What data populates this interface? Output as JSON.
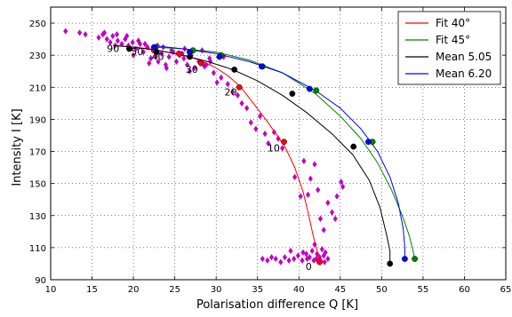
{
  "chart_data": {
    "type": "scatter",
    "xlabel": "Polarisation difference Q [K]",
    "ylabel": "Intensity I [K]",
    "xlim": [
      10,
      65
    ],
    "ylim": [
      90,
      260
    ],
    "xticks": [
      10,
      15,
      20,
      25,
      30,
      35,
      40,
      45,
      50,
      55,
      60,
      65
    ],
    "yticks": [
      90,
      110,
      130,
      150,
      170,
      190,
      210,
      230,
      250
    ],
    "grid": true,
    "legend_position": "top-right",
    "observations": {
      "color": "#c000c0",
      "marker": "diamond",
      "points": [
        [
          11.8,
          245
        ],
        [
          13.5,
          244
        ],
        [
          14.2,
          243
        ],
        [
          15.8,
          241
        ],
        [
          16.3,
          243
        ],
        [
          16.8,
          240
        ],
        [
          17.2,
          238
        ],
        [
          17.5,
          242
        ],
        [
          18.1,
          239
        ],
        [
          18.6,
          237
        ],
        [
          19.0,
          240
        ],
        [
          19.4,
          236
        ],
        [
          19.9,
          238
        ],
        [
          20.3,
          234
        ],
        [
          20.8,
          237
        ],
        [
          21.2,
          232
        ],
        [
          21.7,
          235
        ],
        [
          22.1,
          228
        ],
        [
          22.5,
          233
        ],
        [
          23.0,
          226
        ],
        [
          23.4,
          231
        ],
        [
          23.9,
          224
        ],
        [
          24.3,
          229
        ],
        [
          24.8,
          232
        ],
        [
          25.2,
          226
        ],
        [
          25.6,
          230
        ],
        [
          26.1,
          228
        ],
        [
          26.5,
          224
        ],
        [
          27.0,
          230
        ],
        [
          27.4,
          222
        ],
        [
          27.9,
          226
        ],
        [
          28.3,
          233
        ],
        [
          28.8,
          224
        ],
        [
          29.2,
          228
        ],
        [
          29.7,
          219
        ],
        [
          30.1,
          213
        ],
        [
          30.6,
          216
        ],
        [
          31.4,
          212
        ],
        [
          32.0,
          207
        ],
        [
          32.6,
          205
        ],
        [
          33.1,
          200
        ],
        [
          33.7,
          197
        ],
        [
          34.2,
          188
        ],
        [
          34.8,
          184
        ],
        [
          35.3,
          192
        ],
        [
          35.9,
          181
        ],
        [
          36.3,
          175
        ],
        [
          37.0,
          182
        ],
        [
          37.5,
          178
        ],
        [
          38.0,
          172
        ],
        [
          39.5,
          154
        ],
        [
          40.2,
          142
        ],
        [
          40.6,
          164
        ],
        [
          41.1,
          143
        ],
        [
          41.4,
          153
        ],
        [
          41.9,
          162
        ],
        [
          42.3,
          146
        ],
        [
          42.6,
          128
        ],
        [
          43.0,
          121
        ],
        [
          43.5,
          138
        ],
        [
          44.0,
          132
        ],
        [
          44.4,
          128
        ],
        [
          44.6,
          142
        ],
        [
          45.1,
          151
        ],
        [
          45.3,
          148
        ],
        [
          41.6,
          108
        ],
        [
          41.9,
          112
        ],
        [
          42.2,
          106
        ],
        [
          42.5,
          104
        ],
        [
          42.8,
          109
        ],
        [
          43.0,
          105
        ],
        [
          43.2,
          107
        ],
        [
          43.5,
          103
        ],
        [
          35.6,
          103
        ],
        [
          36.2,
          102
        ],
        [
          36.7,
          104
        ],
        [
          37.2,
          103
        ],
        [
          37.8,
          101
        ],
        [
          38.3,
          104
        ],
        [
          38.8,
          102
        ],
        [
          39.4,
          103
        ],
        [
          39.9,
          105
        ],
        [
          40.4,
          102
        ],
        [
          40.9,
          106
        ],
        [
          41.3,
          104
        ],
        [
          41.8,
          102
        ],
        [
          42.1,
          103
        ],
        [
          42.6,
          102
        ],
        [
          43.1,
          101
        ],
        [
          39.0,
          108
        ],
        [
          40.5,
          107
        ],
        [
          41.0,
          103
        ],
        [
          16.5,
          244
        ],
        [
          18.0,
          243
        ],
        [
          17.8,
          236
        ],
        [
          19.2,
          242
        ],
        [
          20.6,
          239
        ],
        [
          21.4,
          237
        ],
        [
          22.9,
          236
        ],
        [
          23.6,
          235
        ],
        [
          24.6,
          233
        ],
        [
          25.9,
          231
        ],
        [
          21.9,
          225
        ],
        [
          24.0,
          222
        ],
        [
          26.8,
          220
        ],
        [
          28.6,
          223
        ],
        [
          29.3,
          226
        ],
        [
          30.9,
          229
        ],
        [
          20.0,
          230
        ],
        [
          22.7,
          229
        ],
        [
          26.2,
          234
        ]
      ]
    },
    "series": [
      {
        "name": "Fit 40°",
        "color": "#ff0000",
        "line": [
          [
            17.9,
            236
          ],
          [
            20,
            235
          ],
          [
            22,
            234
          ],
          [
            24,
            232
          ],
          [
            26,
            230
          ],
          [
            28,
            227
          ],
          [
            30,
            222
          ],
          [
            31.5,
            217
          ],
          [
            33,
            210
          ],
          [
            34.5,
            200
          ],
          [
            36,
            190
          ],
          [
            37.5,
            179
          ],
          [
            38.4,
            172
          ],
          [
            39.5,
            160
          ],
          [
            40.5,
            145
          ],
          [
            41.2,
            130
          ],
          [
            41.7,
            118
          ],
          [
            42.1,
            110
          ],
          [
            42.4,
            104
          ],
          [
            42.5,
            101
          ]
        ],
        "markers": [
          [
            22.5,
            233
          ],
          [
            25.5,
            231
          ],
          [
            28.2,
            225
          ],
          [
            32.8,
            210
          ],
          [
            38.2,
            176
          ],
          [
            42.5,
            101
          ]
        ]
      },
      {
        "name": "Fit 45°",
        "color": "#008000",
        "line": [
          [
            22.5,
            235
          ],
          [
            26,
            234
          ],
          [
            30,
            232
          ],
          [
            34,
            227
          ],
          [
            38,
            219
          ],
          [
            42,
            206
          ],
          [
            45,
            192
          ],
          [
            47.5,
            178
          ],
          [
            49.5,
            163
          ],
          [
            51.2,
            146
          ],
          [
            52.5,
            130
          ],
          [
            53.3,
            118
          ],
          [
            53.8,
            108
          ],
          [
            54,
            103
          ]
        ],
        "markers": [
          [
            22.7,
            235
          ],
          [
            27.2,
            233
          ],
          [
            30.6,
            230
          ],
          [
            35.6,
            223
          ],
          [
            42.1,
            208
          ],
          [
            48.9,
            176
          ],
          [
            54,
            103
          ]
        ]
      },
      {
        "name": "Mean 5.05",
        "color": "#000000",
        "line": [
          [
            17.6,
            236
          ],
          [
            20,
            235
          ],
          [
            23,
            233
          ],
          [
            26,
            230
          ],
          [
            29,
            226
          ],
          [
            32,
            221
          ],
          [
            35,
            214
          ],
          [
            38,
            205
          ],
          [
            41,
            194
          ],
          [
            44,
            181
          ],
          [
            46.5,
            168
          ],
          [
            48.5,
            152
          ],
          [
            49.8,
            135
          ],
          [
            50.6,
            118
          ],
          [
            51,
            108
          ],
          [
            51,
            100
          ]
        ],
        "markers": [
          [
            19.5,
            234
          ],
          [
            22.8,
            232
          ],
          [
            26.8,
            229
          ],
          [
            32.2,
            221
          ],
          [
            39.2,
            206
          ],
          [
            46.6,
            173
          ],
          [
            51,
            100
          ]
        ]
      },
      {
        "name": "Mean 6.20",
        "color": "#0000ff",
        "line": [
          [
            22.3,
            236
          ],
          [
            26,
            234
          ],
          [
            30,
            231
          ],
          [
            34,
            226
          ],
          [
            38,
            219
          ],
          [
            42,
            208
          ],
          [
            45,
            197
          ],
          [
            47.5,
            184
          ],
          [
            49.5,
            170
          ],
          [
            51,
            154
          ],
          [
            52,
            138
          ],
          [
            52.6,
            122
          ],
          [
            52.8,
            110
          ],
          [
            52.8,
            103
          ]
        ],
        "markers": [
          [
            22.5,
            235
          ],
          [
            26.8,
            232
          ],
          [
            30.4,
            229
          ],
          [
            35.5,
            223
          ],
          [
            41.3,
            209
          ],
          [
            48.4,
            176
          ],
          [
            52.8,
            103
          ]
        ]
      }
    ],
    "annotations": [
      {
        "text": "90",
        "x": 16.8,
        "y": 232
      },
      {
        "text": "50",
        "x": 19.7,
        "y": 230
      },
      {
        "text": "40",
        "x": 22.2,
        "y": 227
      },
      {
        "text": "30",
        "x": 26.3,
        "y": 219
      },
      {
        "text": "20",
        "x": 31.0,
        "y": 205
      },
      {
        "text": "10",
        "x": 36.2,
        "y": 170
      },
      {
        "text": "0",
        "x": 40.8,
        "y": 96
      }
    ]
  }
}
